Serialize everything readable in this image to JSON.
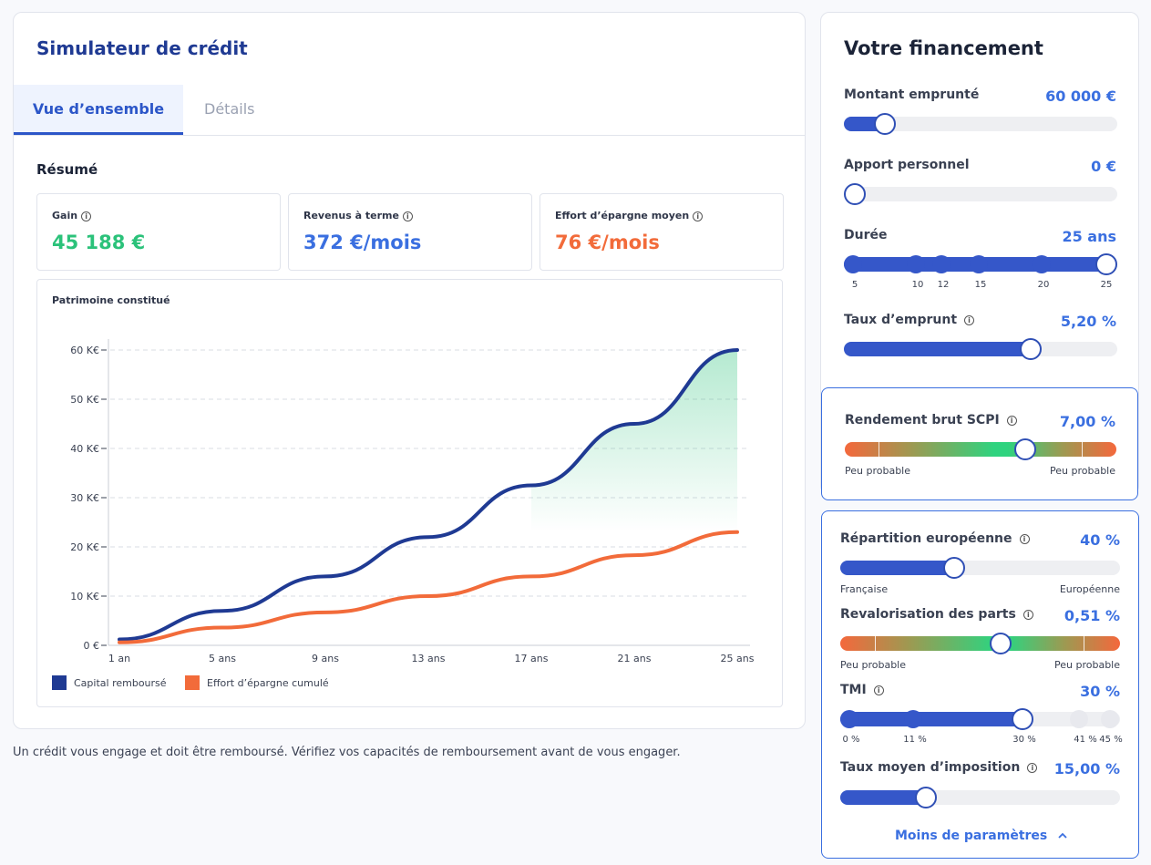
{
  "app": {
    "title": "Simulateur de crédit"
  },
  "tabs": [
    {
      "label": "Vue d’ensemble"
    },
    {
      "label": "Détails"
    }
  ],
  "summary": {
    "title": "Résumé",
    "kpis": [
      {
        "label": "Gain",
        "value": "45 188 €",
        "color": "#2bc27a"
      },
      {
        "label": "Revenus à terme",
        "value": "372 €/mois",
        "color": "#3a6fe0"
      },
      {
        "label": "Effort d’épargne moyen",
        "value": "76 €/mois",
        "color": "#f26b3a"
      }
    ]
  },
  "chart_data": {
    "type": "line",
    "title": "Patrimoine constitué",
    "x": [
      "1 an",
      "5 ans",
      "9 ans",
      "13 ans",
      "17 ans",
      "21 ans",
      "25 ans"
    ],
    "xlabel": "",
    "ylabel": "",
    "yticks": [
      "0 €",
      "10 K€",
      "20 K€",
      "30 K€",
      "40 K€",
      "50 K€",
      "60 K€"
    ],
    "ylim": [
      0,
      60000
    ],
    "grid": true,
    "legend_position": "bottom-left",
    "series": [
      {
        "name": "Capital remboursé",
        "color": "#1f3a93",
        "values": [
          1200,
          7000,
          14000,
          22000,
          32500,
          45000,
          60000
        ]
      },
      {
        "name": "Effort d’épargne cumulé",
        "color": "#f26b3a",
        "values": [
          600,
          3600,
          6700,
          10000,
          14000,
          18300,
          23000
        ]
      }
    ],
    "fill_between": {
      "color": "#2bc27a"
    }
  },
  "disclaimer": "Un crédit vous engage et doit être remboursé. Vérifiez vos capacités de remboursement avant de vous engager.",
  "financing": {
    "title": "Votre financement",
    "montant": {
      "label": "Montant emprunté",
      "value": "60 000 €",
      "fraction": 0.12
    },
    "apport": {
      "label": "Apport personnel",
      "value": "0 €",
      "fraction": 0.0
    },
    "duree": {
      "label": "Durée",
      "value": "25 ans",
      "ticks": [
        "5",
        "10",
        "12",
        "15",
        "20",
        "25"
      ],
      "fraction": 1.0
    },
    "taux": {
      "label": "Taux d’emprunt",
      "value": "5,20 %",
      "fraction": 0.7
    }
  },
  "scpi": {
    "label": "Rendement brut SCPI",
    "value": "7,00 %",
    "fraction": 0.68,
    "left_caption": "Peu probable",
    "right_caption": "Peu probable"
  },
  "params": {
    "repartition": {
      "label": "Répartition européenne",
      "value": "40 %",
      "fraction": 0.4,
      "left_caption": "Française",
      "right_caption": "Européenne"
    },
    "revalorisation": {
      "label": "Revalorisation des parts",
      "value": "0,51 %",
      "fraction": 0.58,
      "left_caption": "Peu probable",
      "right_caption": "Peu probable"
    },
    "tmi": {
      "label": "TMI",
      "value": "30 %",
      "ticks": [
        "0 %",
        "11 %",
        "30 %",
        "41 %",
        "45 %"
      ]
    },
    "taux_moyen": {
      "label": "Taux moyen d’imposition",
      "value": "15,00 %",
      "fraction": 0.29
    },
    "less_link": "Moins de paramètres",
    "less_icon": "chevron-up-icon"
  }
}
